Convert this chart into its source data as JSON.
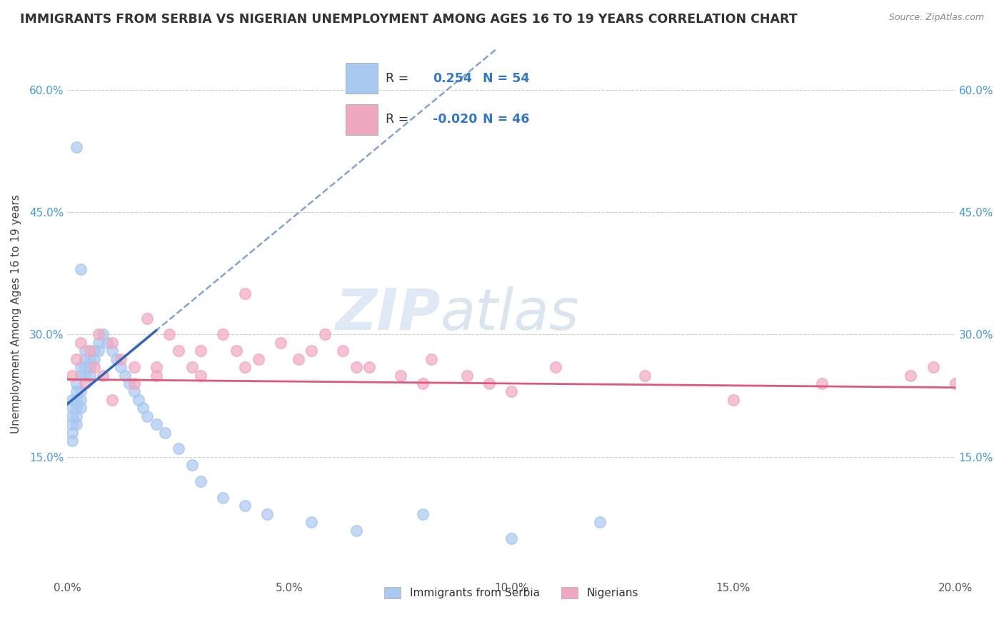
{
  "title": "IMMIGRANTS FROM SERBIA VS NIGERIAN UNEMPLOYMENT AMONG AGES 16 TO 19 YEARS CORRELATION CHART",
  "source": "Source: ZipAtlas.com",
  "ylabel": "Unemployment Among Ages 16 to 19 years",
  "legend_labels": [
    "Immigrants from Serbia",
    "Nigerians"
  ],
  "legend_r": [
    0.254,
    -0.02
  ],
  "legend_n": [
    54,
    46
  ],
  "serbia_color": "#a8c8f0",
  "nigeria_color": "#f0a8c0",
  "serbia_line_color": "#3366bb",
  "nigeria_line_color": "#e05878",
  "watermark_zip": "ZIP",
  "watermark_atlas": "atlas",
  "xlim": [
    0.0,
    0.2
  ],
  "ylim": [
    0.0,
    0.65
  ],
  "x_ticks": [
    0.0,
    0.05,
    0.1,
    0.15,
    0.2
  ],
  "x_tick_labels": [
    "0.0%",
    "5.0%",
    "10.0%",
    "15.0%",
    "20.0%"
  ],
  "y_ticks": [
    0.0,
    0.15,
    0.3,
    0.45,
    0.6
  ],
  "y_tick_labels": [
    "",
    "15.0%",
    "30.0%",
    "45.0%",
    "60.0%"
  ],
  "serbia_x": [
    0.001,
    0.001,
    0.001,
    0.001,
    0.001,
    0.001,
    0.002,
    0.002,
    0.002,
    0.002,
    0.002,
    0.002,
    0.003,
    0.003,
    0.003,
    0.003,
    0.003,
    0.004,
    0.004,
    0.004,
    0.004,
    0.005,
    0.005,
    0.005,
    0.006,
    0.006,
    0.007,
    0.007,
    0.008,
    0.009,
    0.01,
    0.011,
    0.012,
    0.013,
    0.014,
    0.015,
    0.016,
    0.017,
    0.018,
    0.02,
    0.022,
    0.025,
    0.028,
    0.03,
    0.035,
    0.04,
    0.045,
    0.055,
    0.065,
    0.08,
    0.1,
    0.12,
    0.002,
    0.003
  ],
  "serbia_y": [
    0.22,
    0.2,
    0.19,
    0.21,
    0.18,
    0.17,
    0.24,
    0.22,
    0.2,
    0.23,
    0.21,
    0.19,
    0.26,
    0.25,
    0.23,
    0.22,
    0.21,
    0.28,
    0.27,
    0.26,
    0.25,
    0.27,
    0.26,
    0.25,
    0.28,
    0.27,
    0.29,
    0.28,
    0.3,
    0.29,
    0.28,
    0.27,
    0.26,
    0.25,
    0.24,
    0.23,
    0.22,
    0.21,
    0.2,
    0.19,
    0.18,
    0.16,
    0.14,
    0.12,
    0.1,
    0.09,
    0.08,
    0.07,
    0.06,
    0.08,
    0.05,
    0.07,
    0.53,
    0.38
  ],
  "nigeria_x": [
    0.001,
    0.002,
    0.003,
    0.004,
    0.005,
    0.006,
    0.007,
    0.008,
    0.01,
    0.012,
    0.015,
    0.018,
    0.02,
    0.023,
    0.025,
    0.028,
    0.03,
    0.035,
    0.038,
    0.04,
    0.043,
    0.048,
    0.052,
    0.058,
    0.062,
    0.068,
    0.075,
    0.082,
    0.09,
    0.095,
    0.01,
    0.015,
    0.02,
    0.03,
    0.04,
    0.055,
    0.065,
    0.08,
    0.1,
    0.11,
    0.13,
    0.15,
    0.17,
    0.19,
    0.195,
    0.2
  ],
  "nigeria_y": [
    0.25,
    0.27,
    0.29,
    0.24,
    0.28,
    0.26,
    0.3,
    0.25,
    0.29,
    0.27,
    0.26,
    0.32,
    0.25,
    0.3,
    0.28,
    0.26,
    0.25,
    0.3,
    0.28,
    0.35,
    0.27,
    0.29,
    0.27,
    0.3,
    0.28,
    0.26,
    0.25,
    0.27,
    0.25,
    0.24,
    0.22,
    0.24,
    0.26,
    0.28,
    0.26,
    0.28,
    0.26,
    0.24,
    0.23,
    0.26,
    0.25,
    0.22,
    0.24,
    0.25,
    0.26,
    0.24
  ]
}
